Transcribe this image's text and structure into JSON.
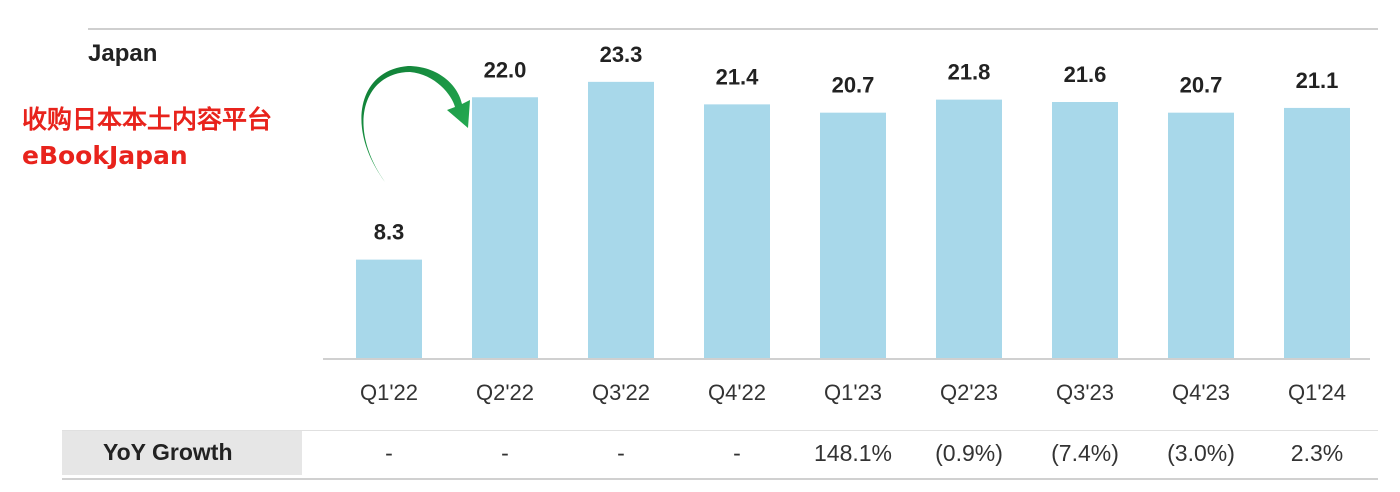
{
  "chart_data": {
    "type": "bar",
    "title": "Japan",
    "categories": [
      "Q1'22",
      "Q2'22",
      "Q3'22",
      "Q4'22",
      "Q1'23",
      "Q2'23",
      "Q3'23",
      "Q4'23",
      "Q1'24"
    ],
    "values": [
      8.3,
      22.0,
      23.3,
      21.4,
      20.7,
      21.8,
      21.6,
      20.7,
      21.1
    ],
    "value_labels": [
      "8.3",
      "22.0",
      "23.3",
      "21.4",
      "20.7",
      "21.8",
      "21.6",
      "20.7",
      "21.1"
    ],
    "ylim": [
      0,
      27
    ],
    "grid": false,
    "bar_color": "#a8d8ea"
  },
  "annotation": {
    "lines": [
      "收购日本本土内容平台",
      "eBookJapan"
    ],
    "color": "#e8231c",
    "arrow_color": "#1a9a48",
    "arrow_icon": "curved-arrow-icon"
  },
  "growth_table": {
    "label": "YoY Growth",
    "values": [
      "-",
      "-",
      "-",
      "-",
      "148.1%",
      "(0.9%)",
      "(7.4%)",
      "(3.0%)",
      "2.3%"
    ]
  }
}
